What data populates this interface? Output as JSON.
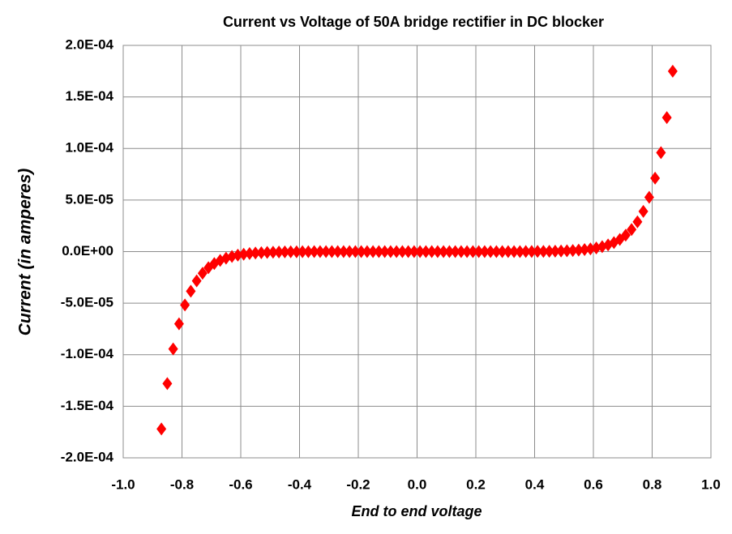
{
  "chart_data": {
    "type": "scatter",
    "title": "Current vs Voltage  of 50A bridge rectifier in DC blocker",
    "x_label": "End to end voltage",
    "y_label": "Current  (in amperes)",
    "color": "#ff0000",
    "grid": true,
    "xlim": [
      -1.0,
      1.0
    ],
    "ylim": [
      -0.0002,
      0.0002
    ],
    "xticks": [
      {
        "value": -1.0,
        "label": "-1.0"
      },
      -0.8,
      -0.6,
      -0.4,
      -0.2,
      {
        "value": 0.0,
        "label": "0.0"
      },
      0.2,
      0.4,
      0.6,
      0.8,
      {
        "value": 1.0,
        "label": "1.0"
      }
    ],
    "yticks": [
      {
        "value": 0.0002,
        "label": "2.0E-04"
      },
      {
        "value": 0.00015,
        "label": "1.5E-04"
      },
      {
        "value": 0.0001,
        "label": "1.0E-04"
      },
      {
        "value": 5e-05,
        "label": "5.0E-05"
      },
      {
        "value": 0,
        "label": "0.0E+00"
      },
      {
        "value": -5e-05,
        "label": "-5.0E-05"
      },
      {
        "value": -0.0001,
        "label": "-1.0E-04"
      },
      {
        "value": -0.00015,
        "label": "-1.5E-04"
      },
      {
        "value": -0.0002,
        "label": "-2.0E-04"
      }
    ],
    "x": [
      -0.87,
      -0.85,
      -0.83,
      -0.81,
      -0.79,
      -0.77,
      -0.75,
      -0.73,
      -0.71,
      -0.69,
      -0.67,
      -0.65,
      -0.63,
      -0.61,
      -0.59,
      -0.57,
      -0.55,
      -0.53,
      -0.51,
      -0.49,
      -0.47,
      -0.45,
      -0.43,
      -0.41,
      -0.39,
      -0.37,
      -0.35,
      -0.33,
      -0.31,
      -0.29,
      -0.27,
      -0.25,
      -0.23,
      -0.21,
      -0.19,
      -0.17,
      -0.15,
      -0.13,
      -0.11,
      -0.09,
      -0.07,
      -0.05,
      -0.03,
      -0.01,
      0.01,
      0.03,
      0.05,
      0.07,
      0.09,
      0.11,
      0.13,
      0.15,
      0.17,
      0.19,
      0.21,
      0.23,
      0.25,
      0.27,
      0.29,
      0.31,
      0.33,
      0.35,
      0.37,
      0.39,
      0.41,
      0.43,
      0.45,
      0.47,
      0.49,
      0.51,
      0.53,
      0.55,
      0.57,
      0.59,
      0.61,
      0.63,
      0.65,
      0.67,
      0.69,
      0.71,
      0.73,
      0.75,
      0.77,
      0.79,
      0.81,
      0.83,
      0.85,
      0.87
    ],
    "values": [
      -0.000172,
      -0.000128,
      -9.44e-05,
      -7e-05,
      -5.18e-05,
      -3.84e-05,
      -2.84e-05,
      -2.1e-05,
      -1.56e-05,
      -1.16e-05,
      -8.57e-06,
      -6.35e-06,
      -4.7e-06,
      -3.48e-06,
      -2.58e-06,
      -1.91e-06,
      -1.42e-06,
      -1.05e-06,
      -7.8e-07,
      -5.8e-07,
      -4.3e-07,
      -3.2e-07,
      -2.4e-07,
      -1.8e-07,
      -1.3e-07,
      -1e-07,
      0,
      0,
      0,
      0,
      0,
      0,
      0,
      0,
      0,
      0,
      0,
      0,
      0,
      0,
      0,
      0,
      0,
      0,
      0,
      0,
      0,
      0,
      0,
      0,
      0,
      0,
      0,
      0,
      0,
      0,
      0,
      0,
      0,
      0,
      0,
      0,
      1e-07,
      1.3e-07,
      1.8e-07,
      2.4e-07,
      3.2e-07,
      4.3e-07,
      5.9e-07,
      7.9e-07,
      1.07e-06,
      1.44e-06,
      1.94e-06,
      2.63e-06,
      3.54e-06,
      4.78e-06,
      6.46e-06,
      8.72e-06,
      1.18e-05,
      1.59e-05,
      2.14e-05,
      2.89e-05,
      3.9e-05,
      5.27e-05,
      7.12e-05,
      9.6e-05,
      0.00013,
      0.000175
    ]
  }
}
